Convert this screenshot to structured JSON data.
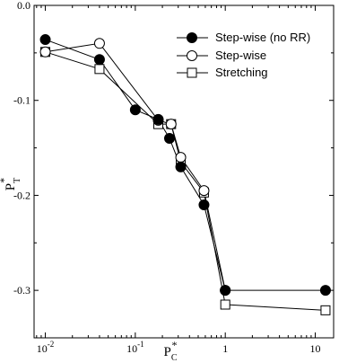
{
  "chart_data": {
    "type": "line",
    "xscale": "log",
    "xlim": [
      0.0075,
      16
    ],
    "ylim": [
      -0.35,
      0.0
    ],
    "xlabel": "P",
    "xlabel_sub": "C",
    "xlabel_sup": "*",
    "ylabel": "P",
    "ylabel_sub": "T",
    "ylabel_sup": "*",
    "grid": false,
    "legend_position": "top-right",
    "x_ticks": [
      {
        "value": 0.01,
        "base": "10",
        "exp": "-2"
      },
      {
        "value": 0.1,
        "base": "10",
        "exp": "-1"
      },
      {
        "value": 1,
        "base": "1",
        "exp": ""
      },
      {
        "value": 10,
        "base": "10",
        "exp": ""
      }
    ],
    "y_ticks": [
      {
        "value": 0.0,
        "label": "0.0"
      },
      {
        "value": -0.1,
        "label": "-0.1"
      },
      {
        "value": -0.2,
        "label": "-0.2"
      },
      {
        "value": -0.3,
        "label": "-0.3"
      }
    ],
    "series": [
      {
        "name": "Step-wise (no RR)",
        "marker": "filled-circle",
        "x": [
          0.01,
          0.04,
          0.1,
          0.18,
          0.24,
          0.32,
          0.58,
          1.0,
          13.0
        ],
        "y": [
          -0.036,
          -0.057,
          -0.11,
          -0.12,
          -0.14,
          -0.17,
          -0.21,
          -0.3,
          -0.3
        ]
      },
      {
        "name": "Step-wise",
        "marker": "open-circle",
        "x": [
          0.01,
          0.04,
          0.18,
          0.25,
          0.32,
          0.58,
          1.0
        ],
        "y": [
          -0.049,
          -0.04,
          -0.121,
          -0.125,
          -0.16,
          -0.195,
          -0.3
        ]
      },
      {
        "name": "Stretching",
        "marker": "open-square",
        "x": [
          0.01,
          0.04,
          0.18,
          0.25,
          0.32,
          0.58,
          1.0,
          13.0
        ],
        "y": [
          -0.049,
          -0.067,
          -0.125,
          -0.125,
          -0.165,
          -0.197,
          -0.315,
          -0.321
        ]
      }
    ]
  }
}
